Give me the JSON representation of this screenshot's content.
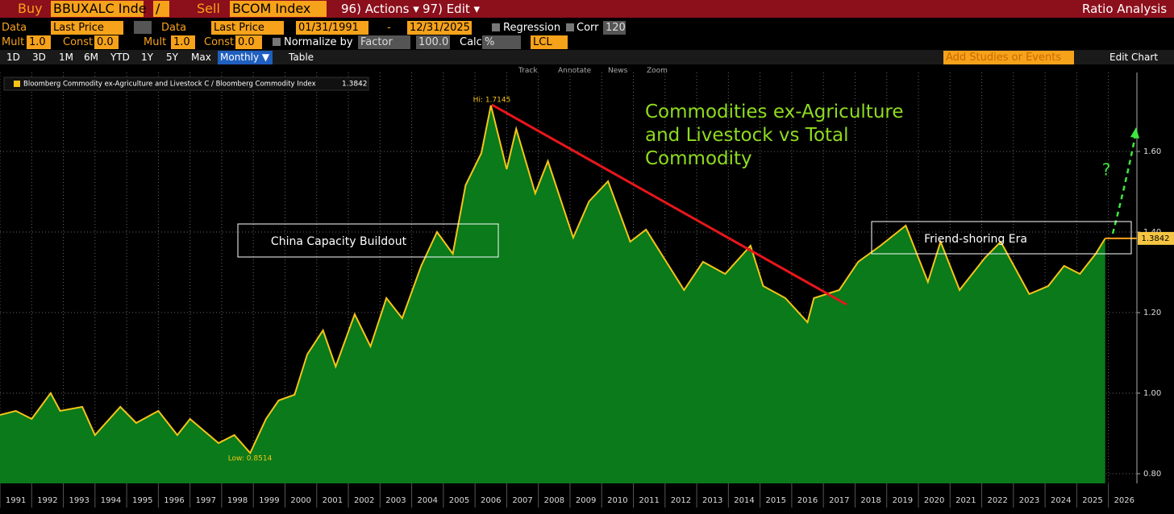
{
  "toolbar": {
    "row1": [
      "Buy",
      "BBUXALC Inde",
      "/",
      "Sell",
      "BCOM Index",
      "96) Actions ▾",
      "97) Edit ▾",
      "Ratio Analysis"
    ],
    "row2": [
      "Data",
      "Last Price",
      "Data",
      "Last Price",
      "01/31/1991",
      "-",
      "12/31/2025",
      "Regression",
      "Corr",
      "120"
    ],
    "row3": [
      "Mult",
      "1.0",
      "Const",
      "0.0",
      "Mult",
      "1.0",
      "Const",
      "0.0",
      "Normalize by",
      "Factor",
      "100.0",
      "Calc",
      "%",
      "LCL"
    ],
    "row4": [
      "1D",
      "3D",
      "1M",
      "6M",
      "YTD",
      "1Y",
      "5Y",
      "Max",
      "Monthly ▼",
      "Table",
      "Add Studies or Events",
      "Edit Chart"
    ],
    "tools": [
      "Track",
      "Annotate",
      "News",
      "Zoom"
    ]
  },
  "chart_data": {
    "type": "area",
    "title": "Commodities ex-Agriculture and Livestock vs Total Commodity",
    "x": [
      1991.0,
      1991.5,
      1992.0,
      1992.6,
      1992.9,
      1993.6,
      1994.0,
      1994.8,
      1995.3,
      1996.0,
      1996.6,
      1997.0,
      1997.9,
      1998.4,
      1998.9,
      1999.4,
      1999.8,
      2000.3,
      2000.7,
      2001.2,
      2001.6,
      2002.2,
      2002.7,
      2003.2,
      2003.7,
      2004.3,
      2004.8,
      2005.3,
      2005.7,
      2006.2,
      2006.5,
      2007.0,
      2007.3,
      2007.9,
      2008.3,
      2009.1,
      2009.6,
      2010.2,
      2010.9,
      2011.4,
      2012.6,
      2013.2,
      2013.9,
      2014.7,
      2015.1,
      2015.8,
      2016.5,
      2016.7,
      2017.5,
      2018.1,
      2018.8,
      2019.6,
      2020.3,
      2020.7,
      2021.3,
      2022.1,
      2022.6,
      2023.5,
      2024.1,
      2024.6,
      2025.1,
      2025.6,
      2025.9
    ],
    "series": [
      {
        "name": "Bloomberg Commodity ex-Agriculture and Livestock C / Bloomberg Commodity Index",
        "color": "#f5c518",
        "fill": "#0a7a1b",
        "values": [
          0.946,
          0.956,
          0.936,
          1.0,
          0.956,
          0.966,
          0.896,
          0.966,
          0.926,
          0.956,
          0.896,
          0.936,
          0.876,
          0.896,
          0.8514,
          0.936,
          0.982,
          0.996,
          1.096,
          1.156,
          1.066,
          1.196,
          1.116,
          1.236,
          1.186,
          1.316,
          1.4,
          1.346,
          1.516,
          1.596,
          1.7145,
          1.556,
          1.656,
          1.496,
          1.576,
          1.386,
          1.476,
          1.526,
          1.376,
          1.406,
          1.256,
          1.326,
          1.296,
          1.366,
          1.266,
          1.236,
          1.176,
          1.236,
          1.256,
          1.326,
          1.366,
          1.416,
          1.276,
          1.376,
          1.256,
          1.336,
          1.376,
          1.246,
          1.266,
          1.316,
          1.296,
          1.346,
          1.3842
        ]
      }
    ],
    "last_label": "1.3842",
    "annotations": [
      "China Capacity Buildout",
      "Friend-shoring Era",
      "?",
      "Hi: 1.7145",
      "Low: 0.8514"
    ],
    "xlim": [
      1991,
      2026.9
    ],
    "xticks": [
      1991,
      1992,
      1993,
      1994,
      1995,
      1996,
      1997,
      1998,
      1999,
      2000,
      2001,
      2002,
      2003,
      2004,
      2005,
      2006,
      2007,
      2008,
      2009,
      2010,
      2011,
      2012,
      2013,
      2014,
      2015,
      2016,
      2017,
      2018,
      2019,
      2020,
      2021,
      2022,
      2023,
      2024,
      2025,
      2026
    ],
    "ylim": [
      0.776,
      1.796
    ],
    "yticks": [
      {
        "value": 0.8,
        "label": "0.80"
      },
      {
        "value": 1.0,
        "label": "1.00"
      },
      {
        "value": 1.2,
        "label": "1.20"
      },
      {
        "value": 1.4,
        "label": "1.40"
      },
      {
        "value": 1.6,
        "label": "1.60"
      }
    ],
    "grid": true
  }
}
